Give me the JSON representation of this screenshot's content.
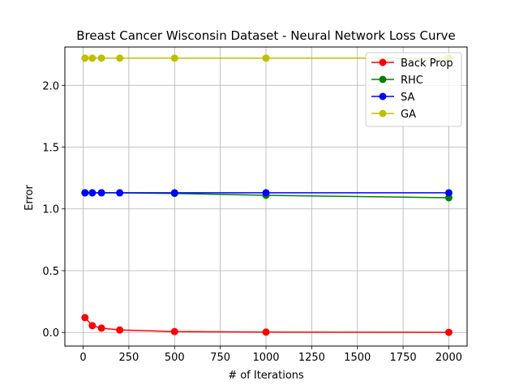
{
  "chart_data": {
    "type": "line",
    "title": "Breast Cancer Wisconsin Dataset - Neural Network Loss Curve",
    "xlabel": "# of Iterations",
    "ylabel": "Error",
    "xlim": [
      -100,
      2100
    ],
    "ylim": [
      -0.11,
      2.31
    ],
    "xticks": [
      0,
      250,
      500,
      750,
      1000,
      1250,
      1500,
      1750,
      2000
    ],
    "yticks": [
      0.0,
      0.5,
      1.0,
      1.5,
      2.0
    ],
    "xtick_labels": [
      "0",
      "250",
      "500",
      "750",
      "1000",
      "1250",
      "1500",
      "1750",
      "2000"
    ],
    "ytick_labels": [
      "0.0",
      "0.5",
      "1.0",
      "1.5",
      "2.0"
    ],
    "grid": true,
    "legend_position": "top-right",
    "x": [
      10,
      50,
      100,
      200,
      500,
      1000,
      2000
    ],
    "series": [
      {
        "name": "Back Prop",
        "color": "#ff0000",
        "values": [
          0.12,
          0.055,
          0.035,
          0.02,
          0.007,
          0.003,
          0.001
        ]
      },
      {
        "name": "RHC",
        "color": "#008000",
        "values": [
          1.13,
          1.13,
          1.13,
          1.13,
          1.125,
          1.11,
          1.09
        ]
      },
      {
        "name": "SA",
        "color": "#0000ff",
        "values": [
          1.13,
          1.13,
          1.13,
          1.13,
          1.13,
          1.13,
          1.13
        ]
      },
      {
        "name": "GA",
        "color": "#bfbf00",
        "values": [
          2.22,
          2.22,
          2.22,
          2.22,
          2.22,
          2.22,
          2.22
        ]
      }
    ]
  }
}
